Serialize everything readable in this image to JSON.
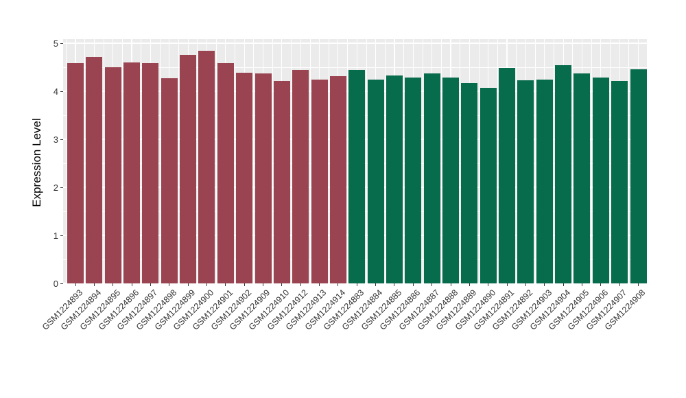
{
  "chart_data": {
    "type": "bar",
    "title": "",
    "xlabel": "",
    "ylabel": "Expression Level",
    "ylim": [
      0,
      5.09
    ],
    "yticks": [
      0,
      1,
      2,
      3,
      4,
      5
    ],
    "grid": "major and minor white gridlines on grey panel",
    "legend_position": "none",
    "group_colors": {
      "group1": "#9B4451",
      "group2": "#066C4C"
    },
    "bars": [
      {
        "label": "GSM1224893",
        "value": 4.58,
        "group": "group1"
      },
      {
        "label": "GSM1224894",
        "value": 4.72,
        "group": "group1"
      },
      {
        "label": "GSM1224895",
        "value": 4.5,
        "group": "group1"
      },
      {
        "label": "GSM1224896",
        "value": 4.6,
        "group": "group1"
      },
      {
        "label": "GSM1224897",
        "value": 4.59,
        "group": "group1"
      },
      {
        "label": "GSM1224898",
        "value": 4.27,
        "group": "group1"
      },
      {
        "label": "GSM1224899",
        "value": 4.76,
        "group": "group1"
      },
      {
        "label": "GSM1224900",
        "value": 4.84,
        "group": "group1"
      },
      {
        "label": "GSM1224901",
        "value": 4.58,
        "group": "group1"
      },
      {
        "label": "GSM1224902",
        "value": 4.39,
        "group": "group1"
      },
      {
        "label": "GSM1224909",
        "value": 4.37,
        "group": "group1"
      },
      {
        "label": "GSM1224910",
        "value": 4.22,
        "group": "group1"
      },
      {
        "label": "GSM1224912",
        "value": 4.44,
        "group": "group1"
      },
      {
        "label": "GSM1224913",
        "value": 4.24,
        "group": "group1"
      },
      {
        "label": "GSM1224914",
        "value": 4.32,
        "group": "group1"
      },
      {
        "label": "GSM1224883",
        "value": 4.45,
        "group": "group2"
      },
      {
        "label": "GSM1224884",
        "value": 4.25,
        "group": "group2"
      },
      {
        "label": "GSM1224885",
        "value": 4.33,
        "group": "group2"
      },
      {
        "label": "GSM1224886",
        "value": 4.28,
        "group": "group2"
      },
      {
        "label": "GSM1224887",
        "value": 4.37,
        "group": "group2"
      },
      {
        "label": "GSM1224888",
        "value": 4.29,
        "group": "group2"
      },
      {
        "label": "GSM1224889",
        "value": 4.17,
        "group": "group2"
      },
      {
        "label": "GSM1224890",
        "value": 4.07,
        "group": "group2"
      },
      {
        "label": "GSM1224891",
        "value": 4.49,
        "group": "group2"
      },
      {
        "label": "GSM1224892",
        "value": 4.23,
        "group": "group2"
      },
      {
        "label": "GSM1224903",
        "value": 4.24,
        "group": "group2"
      },
      {
        "label": "GSM1224904",
        "value": 4.54,
        "group": "group2"
      },
      {
        "label": "GSM1224905",
        "value": 4.37,
        "group": "group2"
      },
      {
        "label": "GSM1224906",
        "value": 4.28,
        "group": "group2"
      },
      {
        "label": "GSM1224907",
        "value": 4.22,
        "group": "group2"
      },
      {
        "label": "GSM1224908",
        "value": 4.46,
        "group": "group2"
      }
    ]
  },
  "style": {
    "page_bg": "#FFFFFF",
    "panel_bg": "#EBEBEB",
    "grid_color": "#FFFFFF",
    "axis_text_color": "#333333",
    "axis_title_color": "#000000"
  }
}
